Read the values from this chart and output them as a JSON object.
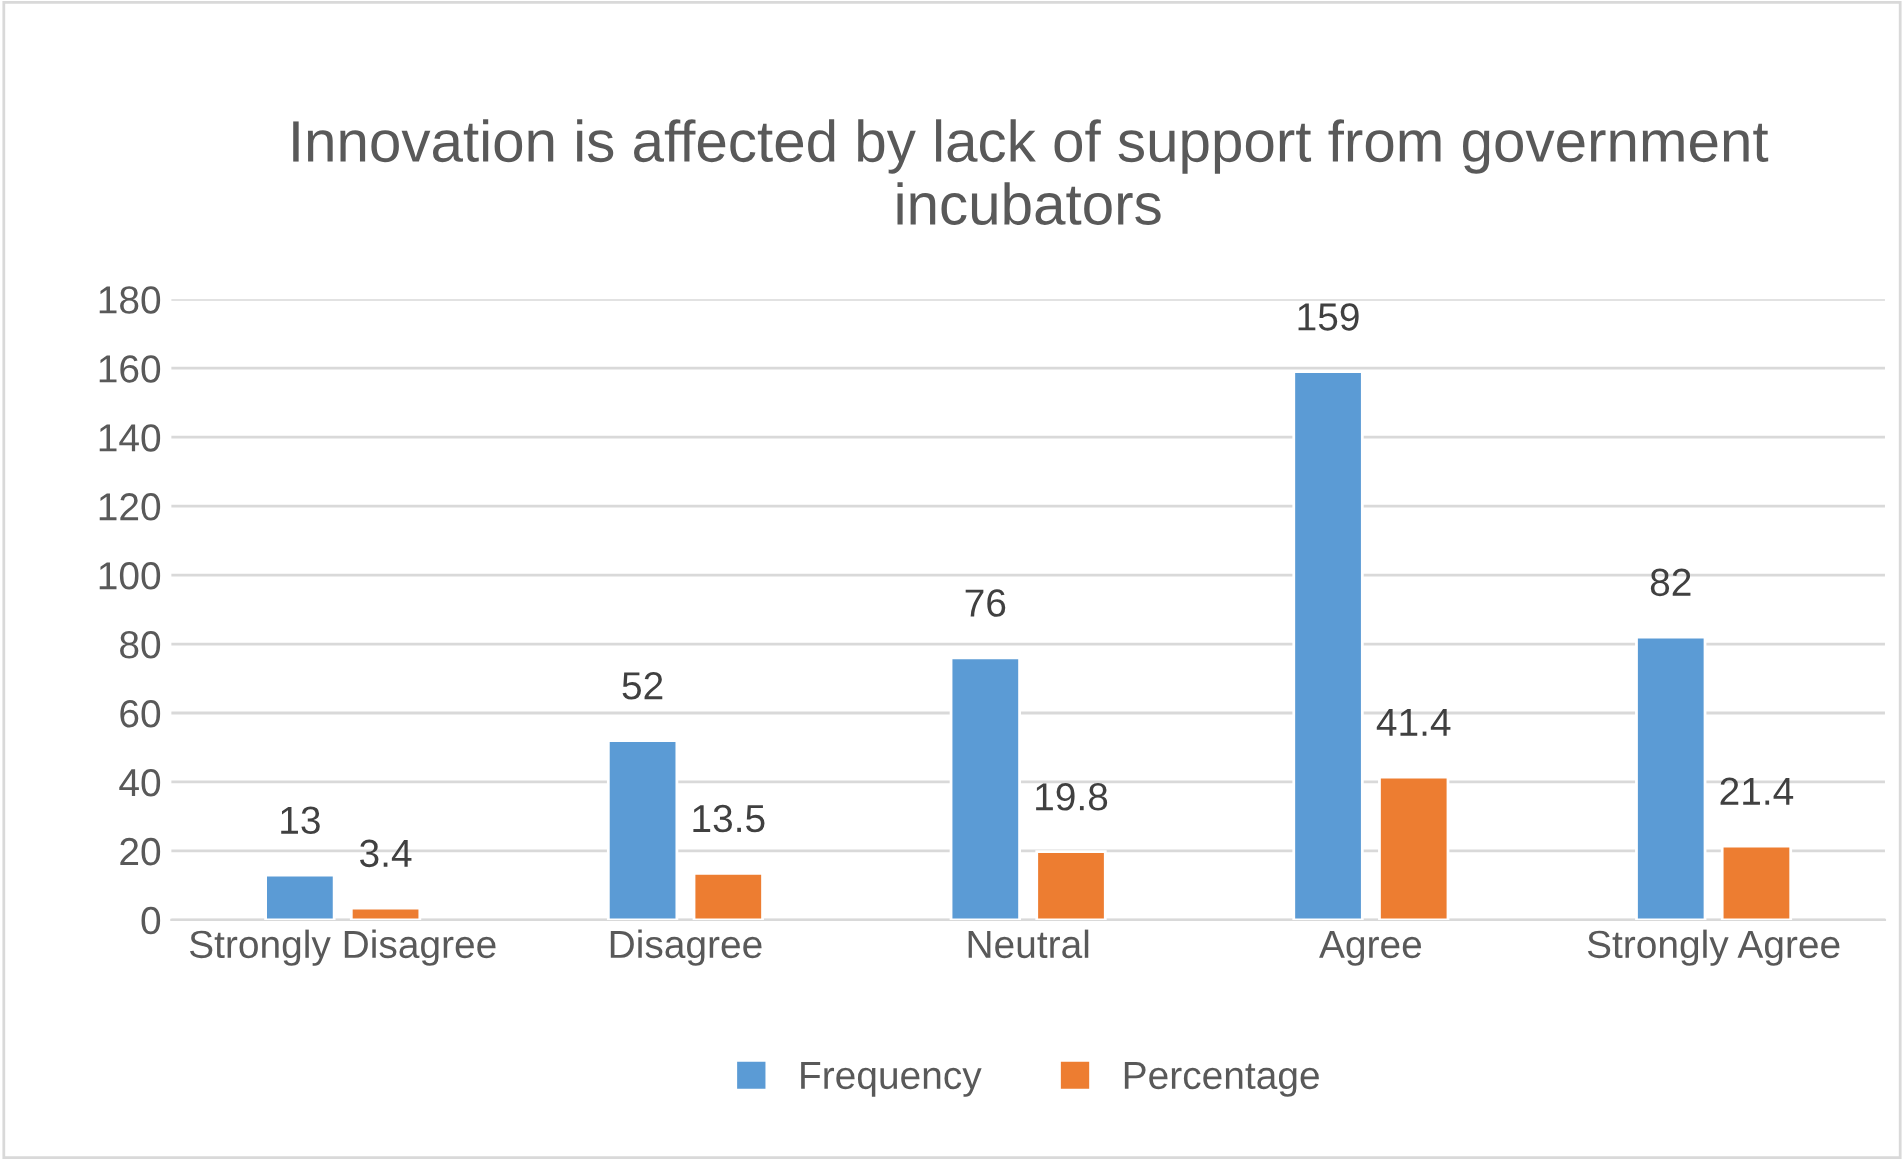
{
  "chart_data": {
    "type": "bar",
    "title": "Innovation is affected by lack of support from government incubators",
    "categories": [
      "Strongly Disagree",
      "Disagree",
      "Neutral",
      "Agree",
      "Strongly Agree"
    ],
    "series": [
      {
        "name": "Frequency",
        "color": "#5b9bd5",
        "values": [
          13,
          52,
          76,
          159,
          82
        ]
      },
      {
        "name": "Percentage",
        "color": "#ed7d31",
        "values": [
          3.4,
          13.5,
          19.8,
          41.4,
          21.4
        ]
      }
    ],
    "ylim": [
      0,
      180
    ],
    "yticks": [
      0,
      20,
      40,
      60,
      80,
      100,
      120,
      140,
      160,
      180
    ],
    "grid": "y",
    "legend": "bottom",
    "data_labels": true
  }
}
